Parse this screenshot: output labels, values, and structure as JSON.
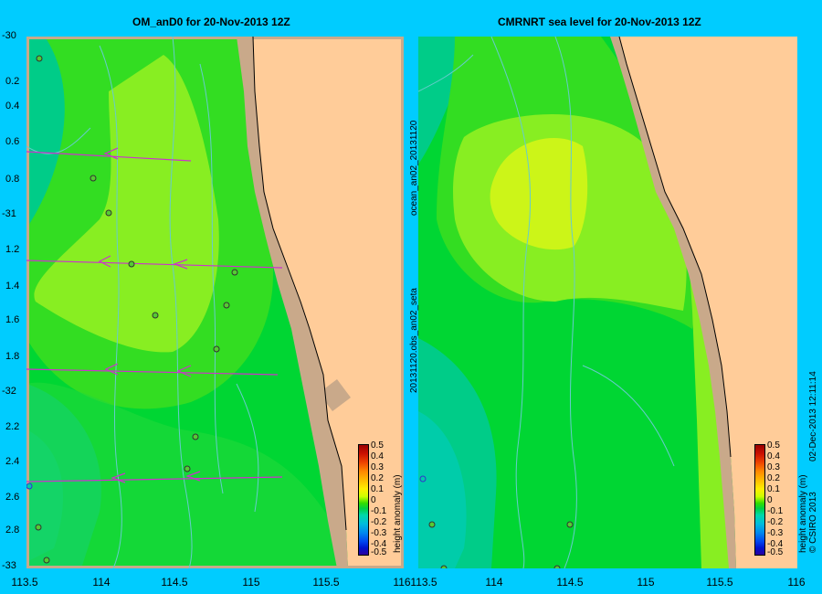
{
  "left_panel": {
    "title": "OM_anD0 for 20-Nov-2013 12Z",
    "y_ticks": [
      "-30",
      "0.2",
      "0.4",
      "0.6",
      "0.8",
      "-31",
      "1.2",
      "1.4",
      "1.6",
      "1.8",
      "-32",
      "2.2",
      "2.4",
      "2.6",
      "2.8",
      "-33"
    ],
    "x_ticks": [
      "113.5",
      "114",
      "114.5",
      "115",
      "115.5",
      "116"
    ]
  },
  "right_panel": {
    "title": "CMRNRT sea level  for 20-Nov-2013 12Z",
    "x_ticks": [
      "113.5",
      "114",
      "114.5",
      "115",
      "115.5",
      "116"
    ],
    "side_text_1": "ocean_an02_20131120",
    "side_text_2": "20131120.obs_an02_seta"
  },
  "colorbar": {
    "unit_label": "height anomaly (m)",
    "tick_labels": [
      "0.5",
      "0.4",
      "0.3",
      "0.2",
      "0.1",
      "0",
      "-0.1",
      "-0.2",
      "-0.3",
      "-0.4",
      "-0.5"
    ],
    "colors": [
      "#2b00a0",
      "#0011cc",
      "#0044ee",
      "#0088ee",
      "#00bbdd",
      "#00d8aa",
      "#00d044",
      "#33dd00",
      "#99ee00",
      "#ccff00",
      "#ffee00",
      "#ffbb00",
      "#ff8800",
      "#ee4400",
      "#cc1100",
      "#990000"
    ]
  },
  "footer": {
    "copyright": "© CSIRO 2013",
    "timestamp": "02-Dec-2013 12:11:14"
  },
  "colors": {
    "background": "#00ccff",
    "land": "#ffcc99",
    "shelf": "#c9a98a",
    "field_dark": "#00d633",
    "field_mid": "#33dd22",
    "field_light": "#88ee22",
    "field_yellow": "#ccf518",
    "field_teal": "#00ccaa",
    "contour": "#66cccc",
    "arrow": "#cc33cc"
  }
}
